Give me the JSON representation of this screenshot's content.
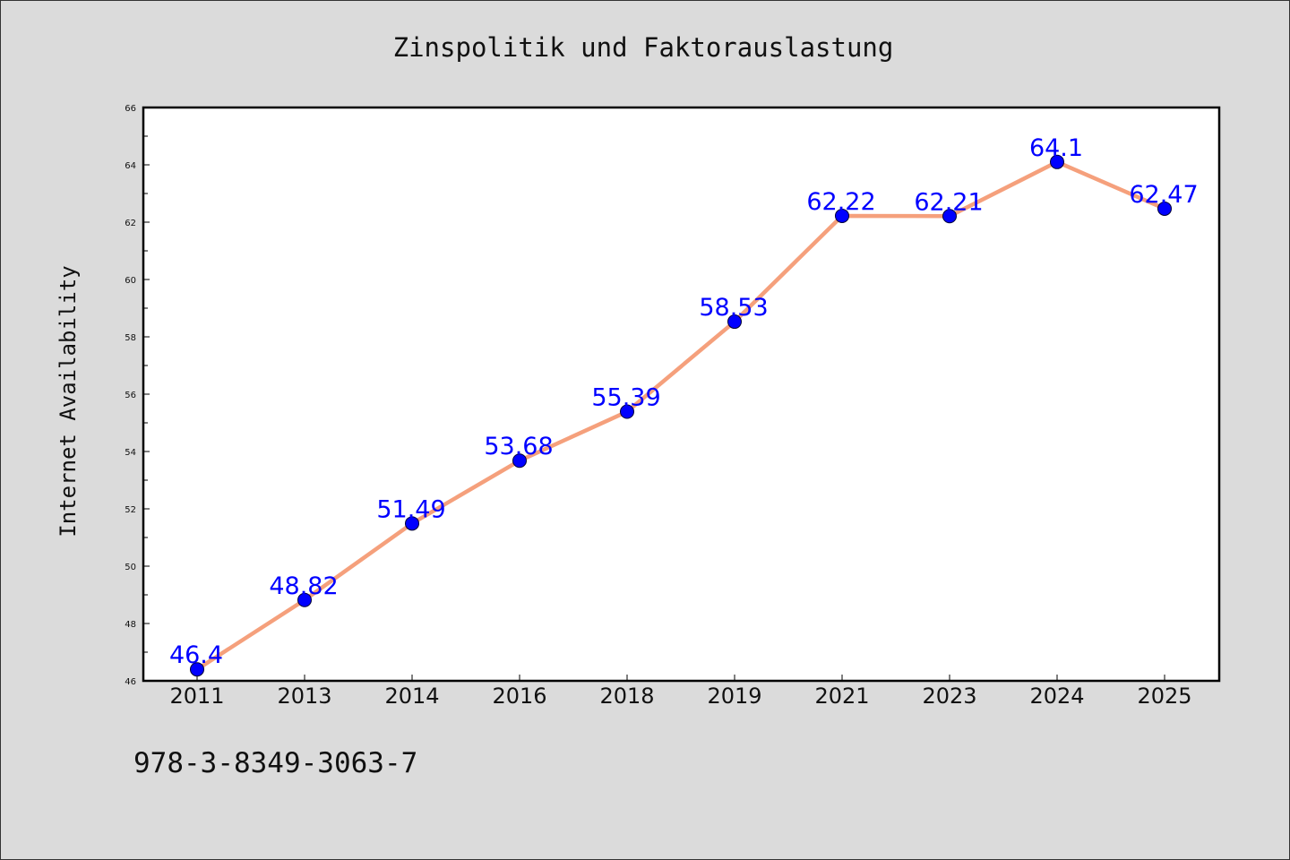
{
  "chart_data": {
    "type": "line",
    "title": "Zinspolitik und Faktorauslastung",
    "xlabel": "",
    "ylabel": "Internet Availability",
    "categories": [
      "2011",
      "2013",
      "2014",
      "2016",
      "2018",
      "2019",
      "2021",
      "2023",
      "2024",
      "2025"
    ],
    "series": [
      {
        "values": [
          46.4,
          48.82,
          51.49,
          53.68,
          55.39,
          58.53,
          62.22,
          62.21,
          64.1,
          62.47
        ],
        "labels": [
          "46.4",
          "48.82",
          "51.49",
          "53.68",
          "55.39",
          "58.53",
          "62.22",
          "62.21",
          "64.1",
          "62.47"
        ],
        "line_color": "#f5a07c",
        "marker_color": "#0000ff"
      }
    ],
    "ylim": [
      46,
      66
    ],
    "yticks": [
      "46",
      "48",
      "50",
      "52",
      "54",
      "56",
      "58",
      "60",
      "62",
      "64",
      "66"
    ],
    "grid": false,
    "legend": "none",
    "background_color": "#dbdbdb",
    "plot_background_color": "#ffffff",
    "label_color": "#0000ff"
  },
  "footnote": "978-3-8349-3063-7"
}
